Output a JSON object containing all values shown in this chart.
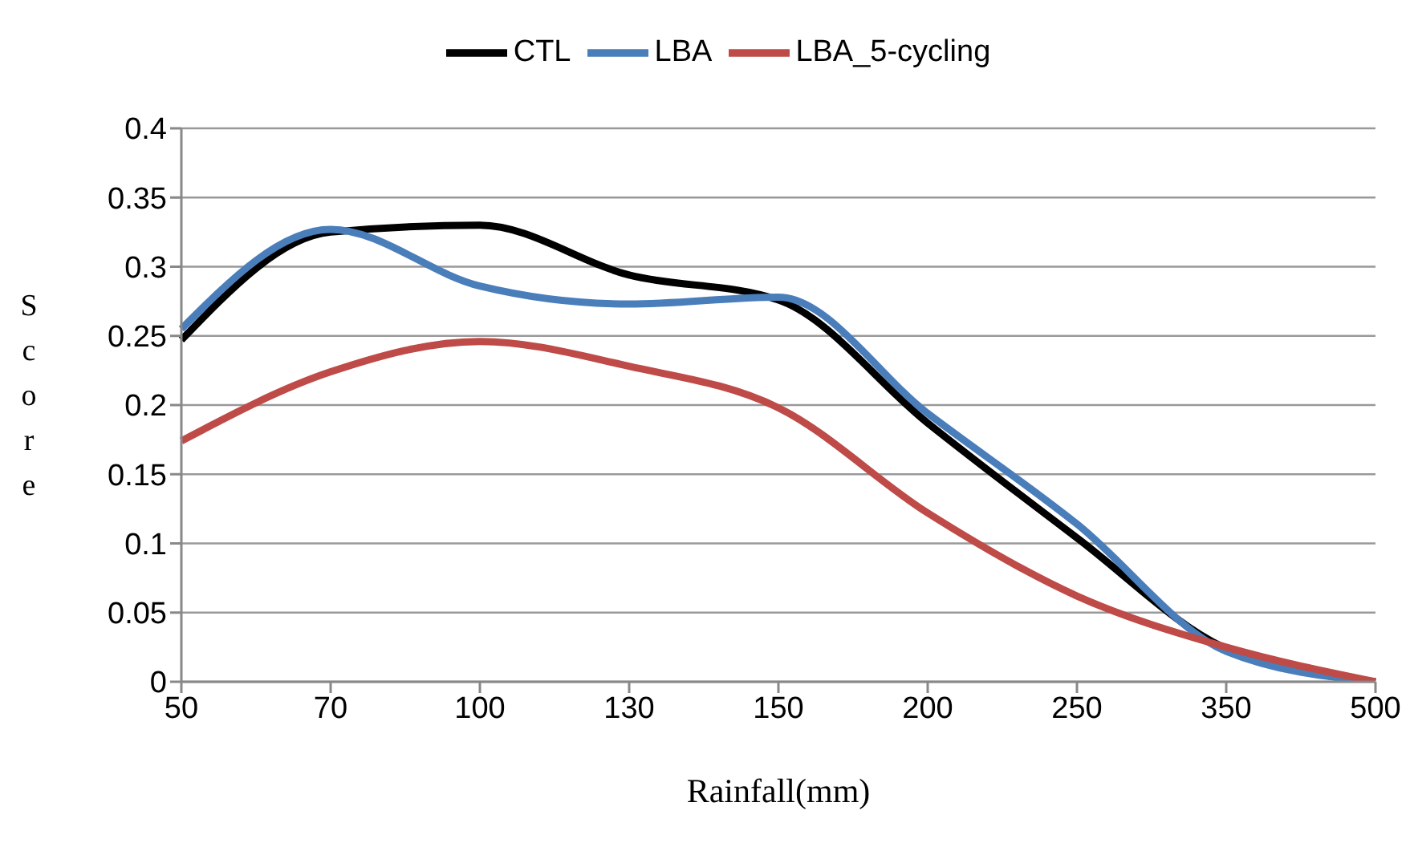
{
  "chart_data": {
    "type": "line",
    "xlabel": "Rainfall(mm)",
    "ylabel": "Score",
    "categories": [
      "50",
      "70",
      "100",
      "130",
      "150",
      "200",
      "250",
      "350",
      "500"
    ],
    "series": [
      {
        "name": "CTL",
        "color": "#000000",
        "values": [
          0.247,
          0.325,
          0.33,
          0.294,
          0.276,
          0.187,
          0.104,
          0.024,
          0
        ]
      },
      {
        "name": "LBA",
        "color": "#4a7ebb",
        "values": [
          0.255,
          0.327,
          0.286,
          0.273,
          0.278,
          0.194,
          0.114,
          0.022,
          0
        ]
      },
      {
        "name": "LBA_5-cycling",
        "color": "#be4b48",
        "values": [
          0.174,
          0.224,
          0.246,
          0.228,
          0.198,
          0.122,
          0.062,
          0.025,
          0
        ]
      }
    ],
    "ylim": [
      0,
      0.4
    ],
    "yticks": [
      0,
      0.05,
      0.1,
      0.15,
      0.2,
      0.25,
      0.3,
      0.35,
      0.4
    ],
    "grid": "y",
    "legend": "top",
    "marker": "none",
    "line_style": "solid"
  }
}
